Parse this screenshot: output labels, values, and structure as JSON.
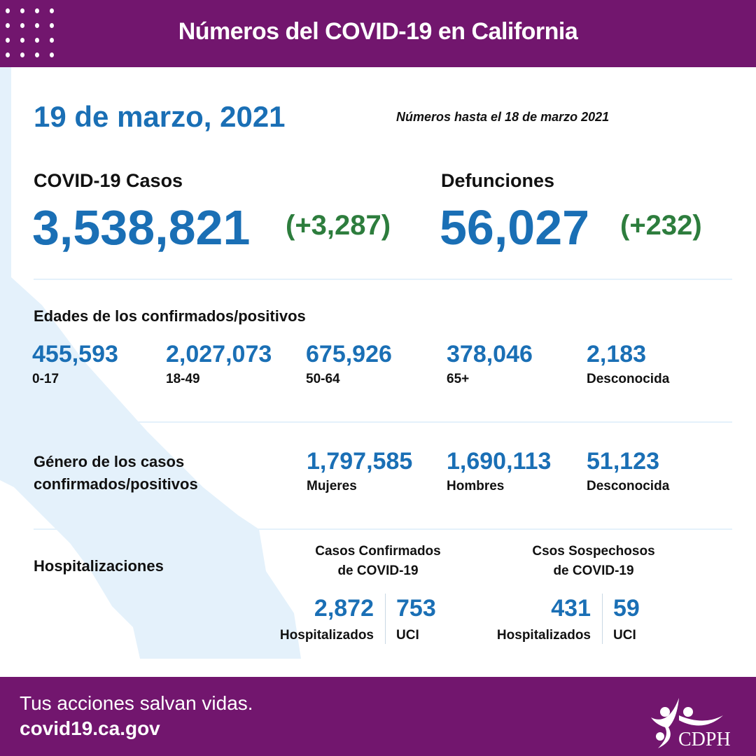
{
  "header": {
    "title": "Números del COVID-19 en California"
  },
  "date": "19 de marzo, 2021",
  "as_of": "Números hasta el 18 de marzo 2021",
  "cases": {
    "label": "COVID-19 Casos",
    "value": "3,538,821",
    "change": "(+3,287)"
  },
  "deaths": {
    "label": "Defunciones",
    "value": "56,027",
    "change": "(+232)"
  },
  "ages": {
    "title": "Edades de los confirmados/positivos",
    "items": [
      {
        "value": "455,593",
        "label": "0-17"
      },
      {
        "value": "2,027,073",
        "label": "18-49"
      },
      {
        "value": "675,926",
        "label": "50-64"
      },
      {
        "value": "378,046",
        "label": "65+"
      },
      {
        "value": "2,183",
        "label": "Desconocida"
      }
    ]
  },
  "gender": {
    "title_line1": "Género de los casos",
    "title_line2": "confirmados/positivos",
    "items": [
      {
        "value": "1,797,585",
        "label": "Mujeres"
      },
      {
        "value": "1,690,113",
        "label": "Hombres"
      },
      {
        "value": "51,123",
        "label": "Desconocida"
      }
    ]
  },
  "hosp": {
    "title": "Hospitalizaciones",
    "confirmed": {
      "title_line1": "Casos Confirmados",
      "title_line2": "de COVID-19",
      "hosp_value": "2,872",
      "hosp_label": "Hospitalizados",
      "icu_value": "753",
      "icu_label": "UCI"
    },
    "suspected": {
      "title_line1": "Csos Sospechosos",
      "title_line2": "de COVID-19",
      "hosp_value": "431",
      "hosp_label": "Hospitalizados",
      "icu_value": "59",
      "icu_label": "UCI"
    }
  },
  "footer": {
    "tagline": "Tus acciones salvan vidas.",
    "url": "covid19.ca.gov",
    "logo_text": "CDPH"
  },
  "colors": {
    "purple": "#72166e",
    "blue": "#1a6fb5",
    "green": "#2d7d3d",
    "map": "#e4f1fb"
  }
}
